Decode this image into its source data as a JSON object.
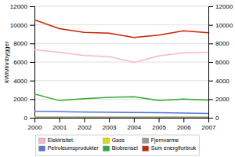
{
  "chart_data": {
    "type": "line",
    "ylabel": "kWh/innbygger",
    "x": [
      2000,
      2001,
      2002,
      2003,
      2004,
      2005,
      2006,
      2007
    ],
    "xlim": [
      2000,
      2007
    ],
    "xticks": [
      2000,
      2001,
      2002,
      2003,
      2004,
      2005,
      2006,
      2007
    ],
    "ylim": [
      0,
      12000
    ],
    "yticks": [
      0,
      2000,
      4000,
      6000,
      8000,
      10000,
      12000
    ],
    "y2lim": [
      0,
      12000
    ],
    "y2ticks": [
      0,
      2000,
      4000,
      6000,
      8000,
      10000,
      12000
    ],
    "grid": true,
    "legend": "bottom",
    "series": [
      {
        "name": "Elektrisitet",
        "color": "#ffb6c1",
        "values": [
          7300,
          7050,
          6700,
          6600,
          5950,
          6650,
          7000,
          7050
        ]
      },
      {
        "name": "Petroleumsprodukter",
        "color": "#5577dd",
        "values": [
          700,
          650,
          620,
          600,
          570,
          540,
          500,
          470
        ]
      },
      {
        "name": "Gass",
        "color": "#dddd00",
        "values": [
          60,
          60,
          60,
          60,
          60,
          60,
          60,
          60
        ]
      },
      {
        "name": "Biobrensel",
        "color": "#33aa33",
        "values": [
          2550,
          1850,
          2050,
          2200,
          2250,
          1850,
          2000,
          1900
        ]
      },
      {
        "name": "Fjernvarme",
        "color": "#999999",
        "values": [
          60,
          60,
          60,
          60,
          60,
          60,
          60,
          60
        ]
      },
      {
        "name": "Sum energiforbruk",
        "color": "#cc2200",
        "values": [
          10550,
          9600,
          9200,
          9100,
          8650,
          8900,
          9350,
          9150
        ]
      }
    ]
  }
}
